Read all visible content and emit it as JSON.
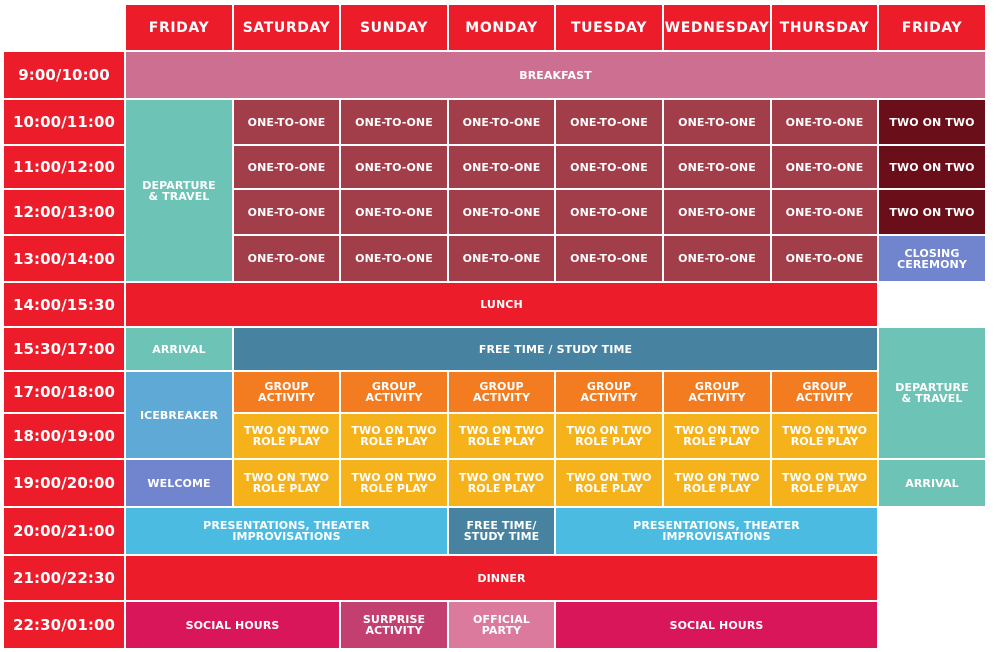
{
  "colors": {
    "red": "#ec1c2b",
    "pink": "#cd6f90",
    "teal": "#6cc3b6",
    "maroon": "#a23d4a",
    "darkmaroon": "#6a0f1a",
    "periwinkle": "#7185cf",
    "blue": "#4782a0",
    "sky": "#5fa9d6",
    "orange": "#f37c20",
    "yellow": "#f6b21b",
    "cyan": "#4bbbe2",
    "crimson": "#d9165a",
    "mauve": "#c33f6f",
    "rose": "#db7a9c"
  },
  "days": [
    "FRIDAY",
    "SATURDAY",
    "SUNDAY",
    "MONDAY",
    "TUESDAY",
    "WEDNESDAY",
    "THURSDAY",
    "FRIDAY"
  ],
  "times": [
    "9:00/10:00",
    "10:00/11:00",
    "11:00/12:00",
    "12:00/13:00",
    "13:00/14:00",
    "14:00/15:30",
    "15:30/17:00",
    "17:00/18:00",
    "18:00/19:00",
    "19:00/20:00",
    "20:00/21:00",
    "21:00/22:30",
    "22:30/01:00"
  ],
  "events": [
    {
      "label": "BREAKFAST",
      "col": 0,
      "row": 0,
      "cspan": 8,
      "rspan": 1,
      "color": "pink"
    },
    {
      "label": "DEPARTURE\n& TRAVEL",
      "col": 0,
      "row": 1,
      "cspan": 1,
      "rspan": 4,
      "color": "teal"
    },
    {
      "label": "ONE-TO-ONE",
      "col": 1,
      "row": 1,
      "cspan": 1,
      "rspan": 1,
      "color": "maroon"
    },
    {
      "label": "ONE-TO-ONE",
      "col": 2,
      "row": 1,
      "cspan": 1,
      "rspan": 1,
      "color": "maroon"
    },
    {
      "label": "ONE-TO-ONE",
      "col": 3,
      "row": 1,
      "cspan": 1,
      "rspan": 1,
      "color": "maroon"
    },
    {
      "label": "ONE-TO-ONE",
      "col": 4,
      "row": 1,
      "cspan": 1,
      "rspan": 1,
      "color": "maroon"
    },
    {
      "label": "ONE-TO-ONE",
      "col": 5,
      "row": 1,
      "cspan": 1,
      "rspan": 1,
      "color": "maroon"
    },
    {
      "label": "ONE-TO-ONE",
      "col": 6,
      "row": 1,
      "cspan": 1,
      "rspan": 1,
      "color": "maroon"
    },
    {
      "label": "TWO ON TWO",
      "col": 7,
      "row": 1,
      "cspan": 1,
      "rspan": 1,
      "color": "darkmaroon"
    },
    {
      "label": "ONE-TO-ONE",
      "col": 1,
      "row": 2,
      "cspan": 1,
      "rspan": 1,
      "color": "maroon"
    },
    {
      "label": "ONE-TO-ONE",
      "col": 2,
      "row": 2,
      "cspan": 1,
      "rspan": 1,
      "color": "maroon"
    },
    {
      "label": "ONE-TO-ONE",
      "col": 3,
      "row": 2,
      "cspan": 1,
      "rspan": 1,
      "color": "maroon"
    },
    {
      "label": "ONE-TO-ONE",
      "col": 4,
      "row": 2,
      "cspan": 1,
      "rspan": 1,
      "color": "maroon"
    },
    {
      "label": "ONE-TO-ONE",
      "col": 5,
      "row": 2,
      "cspan": 1,
      "rspan": 1,
      "color": "maroon"
    },
    {
      "label": "ONE-TO-ONE",
      "col": 6,
      "row": 2,
      "cspan": 1,
      "rspan": 1,
      "color": "maroon"
    },
    {
      "label": "TWO ON TWO",
      "col": 7,
      "row": 2,
      "cspan": 1,
      "rspan": 1,
      "color": "darkmaroon"
    },
    {
      "label": "ONE-TO-ONE",
      "col": 1,
      "row": 3,
      "cspan": 1,
      "rspan": 1,
      "color": "maroon"
    },
    {
      "label": "ONE-TO-ONE",
      "col": 2,
      "row": 3,
      "cspan": 1,
      "rspan": 1,
      "color": "maroon"
    },
    {
      "label": "ONE-TO-ONE",
      "col": 3,
      "row": 3,
      "cspan": 1,
      "rspan": 1,
      "color": "maroon"
    },
    {
      "label": "ONE-TO-ONE",
      "col": 4,
      "row": 3,
      "cspan": 1,
      "rspan": 1,
      "color": "maroon"
    },
    {
      "label": "ONE-TO-ONE",
      "col": 5,
      "row": 3,
      "cspan": 1,
      "rspan": 1,
      "color": "maroon"
    },
    {
      "label": "ONE-TO-ONE",
      "col": 6,
      "row": 3,
      "cspan": 1,
      "rspan": 1,
      "color": "maroon"
    },
    {
      "label": "TWO ON TWO",
      "col": 7,
      "row": 3,
      "cspan": 1,
      "rspan": 1,
      "color": "darkmaroon"
    },
    {
      "label": "ONE-TO-ONE",
      "col": 1,
      "row": 4,
      "cspan": 1,
      "rspan": 1,
      "color": "maroon"
    },
    {
      "label": "ONE-TO-ONE",
      "col": 2,
      "row": 4,
      "cspan": 1,
      "rspan": 1,
      "color": "maroon"
    },
    {
      "label": "ONE-TO-ONE",
      "col": 3,
      "row": 4,
      "cspan": 1,
      "rspan": 1,
      "color": "maroon"
    },
    {
      "label": "ONE-TO-ONE",
      "col": 4,
      "row": 4,
      "cspan": 1,
      "rspan": 1,
      "color": "maroon"
    },
    {
      "label": "ONE-TO-ONE",
      "col": 5,
      "row": 4,
      "cspan": 1,
      "rspan": 1,
      "color": "maroon"
    },
    {
      "label": "ONE-TO-ONE",
      "col": 6,
      "row": 4,
      "cspan": 1,
      "rspan": 1,
      "color": "maroon"
    },
    {
      "label": "CLOSING\nCEREMONY",
      "col": 7,
      "row": 4,
      "cspan": 1,
      "rspan": 1,
      "color": "periwinkle"
    },
    {
      "label": "LUNCH",
      "col": 0,
      "row": 5,
      "cspan": 7,
      "rspan": 1,
      "color": "red"
    },
    {
      "label": "ARRIVAL",
      "col": 0,
      "row": 6,
      "cspan": 1,
      "rspan": 1,
      "color": "teal"
    },
    {
      "label": "FREE TIME / STUDY TIME",
      "col": 1,
      "row": 6,
      "cspan": 6,
      "rspan": 1,
      "color": "blue"
    },
    {
      "label": "DEPARTURE\n& TRAVEL",
      "col": 7,
      "row": 6,
      "cspan": 1,
      "rspan": 3,
      "color": "teal"
    },
    {
      "label": "ICEBREAKER",
      "col": 0,
      "row": 7,
      "cspan": 1,
      "rspan": 2,
      "color": "sky"
    },
    {
      "label": "GROUP\nACTIVITY",
      "col": 1,
      "row": 7,
      "cspan": 1,
      "rspan": 1,
      "color": "orange"
    },
    {
      "label": "GROUP\nACTIVITY",
      "col": 2,
      "row": 7,
      "cspan": 1,
      "rspan": 1,
      "color": "orange"
    },
    {
      "label": "GROUP\nACTIVITY",
      "col": 3,
      "row": 7,
      "cspan": 1,
      "rspan": 1,
      "color": "orange"
    },
    {
      "label": "GROUP\nACTIVITY",
      "col": 4,
      "row": 7,
      "cspan": 1,
      "rspan": 1,
      "color": "orange"
    },
    {
      "label": "GROUP\nACTIVITY",
      "col": 5,
      "row": 7,
      "cspan": 1,
      "rspan": 1,
      "color": "orange"
    },
    {
      "label": "GROUP\nACTIVITY",
      "col": 6,
      "row": 7,
      "cspan": 1,
      "rspan": 1,
      "color": "orange"
    },
    {
      "label": "TWO ON TWO\nROLE PLAY",
      "col": 1,
      "row": 8,
      "cspan": 1,
      "rspan": 1,
      "color": "yellow"
    },
    {
      "label": "TWO ON TWO\nROLE PLAY",
      "col": 2,
      "row": 8,
      "cspan": 1,
      "rspan": 1,
      "color": "yellow"
    },
    {
      "label": "TWO ON TWO\nROLE PLAY",
      "col": 3,
      "row": 8,
      "cspan": 1,
      "rspan": 1,
      "color": "yellow"
    },
    {
      "label": "TWO ON TWO\nROLE PLAY",
      "col": 4,
      "row": 8,
      "cspan": 1,
      "rspan": 1,
      "color": "yellow"
    },
    {
      "label": "TWO ON TWO\nROLE PLAY",
      "col": 5,
      "row": 8,
      "cspan": 1,
      "rspan": 1,
      "color": "yellow"
    },
    {
      "label": "TWO ON TWO\nROLE PLAY",
      "col": 6,
      "row": 8,
      "cspan": 1,
      "rspan": 1,
      "color": "yellow"
    },
    {
      "label": "WELCOME",
      "col": 0,
      "row": 9,
      "cspan": 1,
      "rspan": 1,
      "color": "periwinkle"
    },
    {
      "label": "TWO ON TWO\nROLE PLAY",
      "col": 1,
      "row": 9,
      "cspan": 1,
      "rspan": 1,
      "color": "yellow"
    },
    {
      "label": "TWO ON TWO\nROLE PLAY",
      "col": 2,
      "row": 9,
      "cspan": 1,
      "rspan": 1,
      "color": "yellow"
    },
    {
      "label": "TWO ON TWO\nROLE PLAY",
      "col": 3,
      "row": 9,
      "cspan": 1,
      "rspan": 1,
      "color": "yellow"
    },
    {
      "label": "TWO ON TWO\nROLE PLAY",
      "col": 4,
      "row": 9,
      "cspan": 1,
      "rspan": 1,
      "color": "yellow"
    },
    {
      "label": "TWO ON TWO\nROLE PLAY",
      "col": 5,
      "row": 9,
      "cspan": 1,
      "rspan": 1,
      "color": "yellow"
    },
    {
      "label": "TWO ON TWO\nROLE PLAY",
      "col": 6,
      "row": 9,
      "cspan": 1,
      "rspan": 1,
      "color": "yellow"
    },
    {
      "label": "ARRIVAL",
      "col": 7,
      "row": 9,
      "cspan": 1,
      "rspan": 1,
      "color": "teal"
    },
    {
      "label": "PRESENTATIONS, THEATER\nIMPROVISATIONS",
      "col": 0,
      "row": 10,
      "cspan": 3,
      "rspan": 1,
      "color": "cyan"
    },
    {
      "label": "FREE TIME/\nSTUDY TIME",
      "col": 3,
      "row": 10,
      "cspan": 1,
      "rspan": 1,
      "color": "blue"
    },
    {
      "label": "PRESENTATIONS, THEATER\nIMPROVISATIONS",
      "col": 4,
      "row": 10,
      "cspan": 3,
      "rspan": 1,
      "color": "cyan"
    },
    {
      "label": "DINNER",
      "col": 0,
      "row": 11,
      "cspan": 7,
      "rspan": 1,
      "color": "red"
    },
    {
      "label": "SOCIAL HOURS",
      "col": 0,
      "row": 12,
      "cspan": 2,
      "rspan": 1,
      "color": "crimson"
    },
    {
      "label": "SURPRISE\nACTIVITY",
      "col": 2,
      "row": 12,
      "cspan": 1,
      "rspan": 1,
      "color": "mauve"
    },
    {
      "label": "OFFICIAL\nPARTY",
      "col": 3,
      "row": 12,
      "cspan": 1,
      "rspan": 1,
      "color": "rose"
    },
    {
      "label": "SOCIAL HOURS",
      "col": 4,
      "row": 12,
      "cspan": 3,
      "rspan": 1,
      "color": "crimson"
    }
  ]
}
